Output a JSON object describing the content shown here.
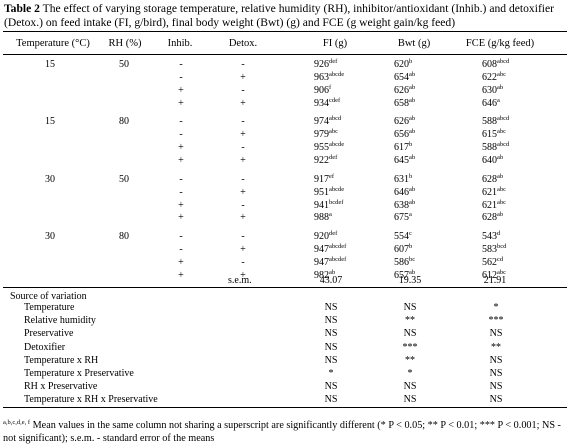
{
  "caption": {
    "label": "Table 2",
    "text": " The effect of varying storage temperature, relative humidity (RH), inhibitor/antioxidant (Inhib.) and detoxifier (Detox.) on feed intake (FI, g/bird), final body weight (Bwt) (g) and FCE (g weight gain/kg feed)"
  },
  "columns": [
    "Temperature (°C)",
    "RH (%)",
    "Inhib.",
    "Detox.",
    "FI (g)",
    "Bwt (g)",
    "FCE (g/kg feed)"
  ],
  "rows": [
    {
      "temp": "15",
      "rh": "50",
      "inhib": "-",
      "detox": "-",
      "fi": "926",
      "fi_sup": "def",
      "bwt": "620",
      "bwt_sup": "b",
      "fce": "608",
      "fce_sup": "abcd"
    },
    {
      "temp": "",
      "rh": "",
      "inhib": "-",
      "detox": "+",
      "fi": "963",
      "fi_sup": "abcde",
      "bwt": "654",
      "bwt_sup": "ab",
      "fce": "622",
      "fce_sup": "abc"
    },
    {
      "temp": "",
      "rh": "",
      "inhib": "+",
      "detox": "-",
      "fi": "906",
      "fi_sup": "f",
      "bwt": "626",
      "bwt_sup": "ab",
      "fce": "630",
      "fce_sup": "ab"
    },
    {
      "temp": "",
      "rh": "",
      "inhib": "+",
      "detox": "+",
      "fi": "934",
      "fi_sup": "cdef",
      "bwt": "658",
      "bwt_sup": "ab",
      "fce": "646",
      "fce_sup": "a"
    },
    {
      "temp": "15",
      "rh": "80",
      "inhib": "-",
      "detox": "-",
      "fi": "974",
      "fi_sup": "abcd",
      "bwt": "626",
      "bwt_sup": "ab",
      "fce": "588",
      "fce_sup": "abcd"
    },
    {
      "temp": "",
      "rh": "",
      "inhib": "-",
      "detox": "+",
      "fi": "979",
      "fi_sup": "abc",
      "bwt": "656",
      "bwt_sup": "ab",
      "fce": "615",
      "fce_sup": "abc"
    },
    {
      "temp": "",
      "rh": "",
      "inhib": "+",
      "detox": "-",
      "fi": "955",
      "fi_sup": "abcde",
      "bwt": "617",
      "bwt_sup": "b",
      "fce": "588",
      "fce_sup": "abcd"
    },
    {
      "temp": "",
      "rh": "",
      "inhib": "+",
      "detox": "+",
      "fi": "922",
      "fi_sup": "def",
      "bwt": "645",
      "bwt_sup": "ab",
      "fce": "640",
      "fce_sup": "ab"
    },
    {
      "temp": "30",
      "rh": "50",
      "inhib": "-",
      "detox": "-",
      "fi": "917",
      "fi_sup": "ef",
      "bwt": "631",
      "bwt_sup": "b",
      "fce": "628",
      "fce_sup": "ab"
    },
    {
      "temp": "",
      "rh": "",
      "inhib": "-",
      "detox": "+",
      "fi": "951",
      "fi_sup": "abcde",
      "bwt": "646",
      "bwt_sup": "ab",
      "fce": "621",
      "fce_sup": "abc"
    },
    {
      "temp": "",
      "rh": "",
      "inhib": "+",
      "detox": "-",
      "fi": "941",
      "fi_sup": "bcdef",
      "bwt": "638",
      "bwt_sup": "ab",
      "fce": "621",
      "fce_sup": "abc"
    },
    {
      "temp": "",
      "rh": "",
      "inhib": "+",
      "detox": "+",
      "fi": "988",
      "fi_sup": "a",
      "bwt": "675",
      "bwt_sup": "a",
      "fce": "628",
      "fce_sup": "ab"
    },
    {
      "temp": "30",
      "rh": "80",
      "inhib": "-",
      "detox": "-",
      "fi": "920",
      "fi_sup": "def",
      "bwt": "554",
      "bwt_sup": "c",
      "fce": "543",
      "fce_sup": "d"
    },
    {
      "temp": "",
      "rh": "",
      "inhib": "-",
      "detox": "+",
      "fi": "947",
      "fi_sup": "abcdef",
      "bwt": "607",
      "bwt_sup": "b",
      "fce": "583",
      "fce_sup": "bcd"
    },
    {
      "temp": "",
      "rh": "",
      "inhib": "+",
      "detox": "-",
      "fi": "947",
      "fi_sup": "abcdef",
      "bwt": "586",
      "bwt_sup": "bc",
      "fce": "562",
      "fce_sup": "cd"
    },
    {
      "temp": "",
      "rh": "",
      "inhib": "+",
      "detox": "+",
      "fi": "982",
      "fi_sup": "ab",
      "bwt": "657",
      "bwt_sup": "ab",
      "fce": "612",
      "fce_sup": "abc"
    }
  ],
  "sem": {
    "label": "s.e.m.",
    "fi": "43.07",
    "bwt": "19.35",
    "fce": "21.91"
  },
  "sources": {
    "title": "Source of variation",
    "items": [
      {
        "name": "Temperature",
        "fi": "NS",
        "bwt": "NS",
        "fce": "*"
      },
      {
        "name": "Relative humidity",
        "fi": "NS",
        "bwt": "**",
        "fce": "***"
      },
      {
        "name": "Preservative",
        "fi": "NS",
        "bwt": "NS",
        "fce": "NS"
      },
      {
        "name": "Detoxifier",
        "fi": "NS",
        "bwt": "***",
        "fce": "**"
      },
      {
        "name": "Temperature x RH",
        "fi": "NS",
        "bwt": "**",
        "fce": "NS"
      },
      {
        "name": "Temperature x Preservative",
        "fi": "*",
        "bwt": "*",
        "fce": "NS"
      },
      {
        "name": "RH x Preservative",
        "fi": "NS",
        "bwt": "NS",
        "fce": "NS"
      },
      {
        "name": "Temperature x RH x Preservative",
        "fi": "NS",
        "bwt": "NS",
        "fce": "NS"
      }
    ]
  },
  "footnote": {
    "sup": "a,b,c,d,e, f",
    "text": " Mean values in the same column not sharing a superscript are significantly different (* P < 0.05; ** P < 0.01; *** P < 0.001; NS - not significant); s.e.m. - standard error of the means"
  }
}
